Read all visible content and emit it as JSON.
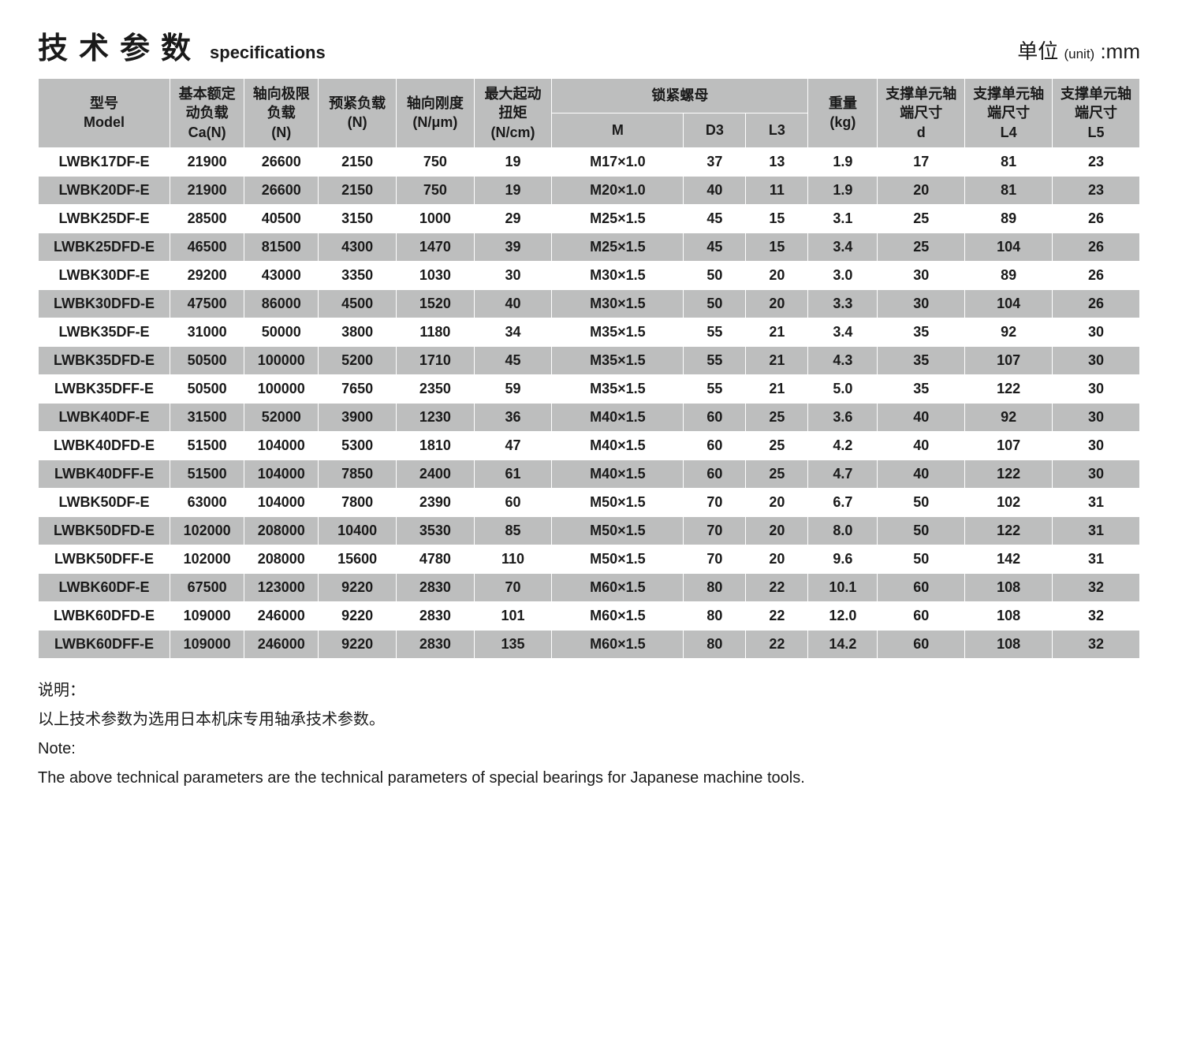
{
  "title_cn": "技术参数",
  "title_en": "specifications",
  "unit_label_cn": "单位",
  "unit_label_paren": "(unit)",
  "unit_colon_mm": ":mm",
  "columns": {
    "model_cn": "型号",
    "model_en": "Model",
    "ca_cn": "基本额定动负载",
    "ca_unit": "Ca(N)",
    "axlim_cn": "轴向极限负载",
    "axlim_unit": "(N)",
    "preload_cn": "预紧负载",
    "preload_unit": "(N)",
    "stiff_cn": "轴向刚度",
    "stiff_unit": "(N/μm)",
    "torque_cn": "最大起动扭矩",
    "torque_unit": "(N/cm)",
    "locknut_cn": "锁紧螺母",
    "m": "M",
    "d3": "D3",
    "l3": "L3",
    "weight_cn": "重量",
    "weight_unit": "(kg)",
    "sup_cn": "支撑单元轴端尺寸",
    "d": "d",
    "l4": "L4",
    "l5": "L5"
  },
  "rows": [
    {
      "model": "LWBK17DF-E",
      "ca": "21900",
      "axlim": "26600",
      "preload": "2150",
      "stiff": "750",
      "torque": "19",
      "m": "M17×1.0",
      "d3": "37",
      "l3": "13",
      "kg": "1.9",
      "d": "17",
      "l4": "81",
      "l5": "23"
    },
    {
      "model": "LWBK20DF-E",
      "ca": "21900",
      "axlim": "26600",
      "preload": "2150",
      "stiff": "750",
      "torque": "19",
      "m": "M20×1.0",
      "d3": "40",
      "l3": "11",
      "kg": "1.9",
      "d": "20",
      "l4": "81",
      "l5": "23"
    },
    {
      "model": "LWBK25DF-E",
      "ca": "28500",
      "axlim": "40500",
      "preload": "3150",
      "stiff": "1000",
      "torque": "29",
      "m": "M25×1.5",
      "d3": "45",
      "l3": "15",
      "kg": "3.1",
      "d": "25",
      "l4": "89",
      "l5": "26"
    },
    {
      "model": "LWBK25DFD-E",
      "ca": "46500",
      "axlim": "81500",
      "preload": "4300",
      "stiff": "1470",
      "torque": "39",
      "m": "M25×1.5",
      "d3": "45",
      "l3": "15",
      "kg": "3.4",
      "d": "25",
      "l4": "104",
      "l5": "26"
    },
    {
      "model": "LWBK30DF-E",
      "ca": "29200",
      "axlim": "43000",
      "preload": "3350",
      "stiff": "1030",
      "torque": "30",
      "m": "M30×1.5",
      "d3": "50",
      "l3": "20",
      "kg": "3.0",
      "d": "30",
      "l4": "89",
      "l5": "26"
    },
    {
      "model": "LWBK30DFD-E",
      "ca": "47500",
      "axlim": "86000",
      "preload": "4500",
      "stiff": "1520",
      "torque": "40",
      "m": "M30×1.5",
      "d3": "50",
      "l3": "20",
      "kg": "3.3",
      "d": "30",
      "l4": "104",
      "l5": "26"
    },
    {
      "model": "LWBK35DF-E",
      "ca": "31000",
      "axlim": "50000",
      "preload": "3800",
      "stiff": "1180",
      "torque": "34",
      "m": "M35×1.5",
      "d3": "55",
      "l3": "21",
      "kg": "3.4",
      "d": "35",
      "l4": "92",
      "l5": "30"
    },
    {
      "model": "LWBK35DFD-E",
      "ca": "50500",
      "axlim": "100000",
      "preload": "5200",
      "stiff": "1710",
      "torque": "45",
      "m": "M35×1.5",
      "d3": "55",
      "l3": "21",
      "kg": "4.3",
      "d": "35",
      "l4": "107",
      "l5": "30"
    },
    {
      "model": "LWBK35DFF-E",
      "ca": "50500",
      "axlim": "100000",
      "preload": "7650",
      "stiff": "2350",
      "torque": "59",
      "m": "M35×1.5",
      "d3": "55",
      "l3": "21",
      "kg": "5.0",
      "d": "35",
      "l4": "122",
      "l5": "30"
    },
    {
      "model": "LWBK40DF-E",
      "ca": "31500",
      "axlim": "52000",
      "preload": "3900",
      "stiff": "1230",
      "torque": "36",
      "m": "M40×1.5",
      "d3": "60",
      "l3": "25",
      "kg": "3.6",
      "d": "40",
      "l4": "92",
      "l5": "30"
    },
    {
      "model": "LWBK40DFD-E",
      "ca": "51500",
      "axlim": "104000",
      "preload": "5300",
      "stiff": "1810",
      "torque": "47",
      "m": "M40×1.5",
      "d3": "60",
      "l3": "25",
      "kg": "4.2",
      "d": "40",
      "l4": "107",
      "l5": "30"
    },
    {
      "model": "LWBK40DFF-E",
      "ca": "51500",
      "axlim": "104000",
      "preload": "7850",
      "stiff": "2400",
      "torque": "61",
      "m": "M40×1.5",
      "d3": "60",
      "l3": "25",
      "kg": "4.7",
      "d": "40",
      "l4": "122",
      "l5": "30"
    },
    {
      "model": "LWBK50DF-E",
      "ca": "63000",
      "axlim": "104000",
      "preload": "7800",
      "stiff": "2390",
      "torque": "60",
      "m": "M50×1.5",
      "d3": "70",
      "l3": "20",
      "kg": "6.7",
      "d": "50",
      "l4": "102",
      "l5": "31"
    },
    {
      "model": "LWBK50DFD-E",
      "ca": "102000",
      "axlim": "208000",
      "preload": "10400",
      "stiff": "3530",
      "torque": "85",
      "m": "M50×1.5",
      "d3": "70",
      "l3": "20",
      "kg": "8.0",
      "d": "50",
      "l4": "122",
      "l5": "31"
    },
    {
      "model": "LWBK50DFF-E",
      "ca": "102000",
      "axlim": "208000",
      "preload": "15600",
      "stiff": "4780",
      "torque": "110",
      "m": "M50×1.5",
      "d3": "70",
      "l3": "20",
      "kg": "9.6",
      "d": "50",
      "l4": "142",
      "l5": "31"
    },
    {
      "model": "LWBK60DF-E",
      "ca": "67500",
      "axlim": "123000",
      "preload": "9220",
      "stiff": "2830",
      "torque": "70",
      "m": "M60×1.5",
      "d3": "80",
      "l3": "22",
      "kg": "10.1",
      "d": "60",
      "l4": "108",
      "l5": "32"
    },
    {
      "model": "LWBK60DFD-E",
      "ca": "109000",
      "axlim": "246000",
      "preload": "9220",
      "stiff": "2830",
      "torque": "101",
      "m": "M60×1.5",
      "d3": "80",
      "l3": "22",
      "kg": "12.0",
      "d": "60",
      "l4": "108",
      "l5": "32"
    },
    {
      "model": "LWBK60DFF-E",
      "ca": "109000",
      "axlim": "246000",
      "preload": "9220",
      "stiff": "2830",
      "torque": "135",
      "m": "M60×1.5",
      "d3": "80",
      "l3": "22",
      "kg": "14.2",
      "d": "60",
      "l4": "108",
      "l5": "32"
    }
  ],
  "notes": {
    "label_cn": "说明：",
    "line_cn": "以上技术参数为选用日本机床专用轴承技术参数。",
    "label_en": "Note:",
    "line_en": "The above technical parameters are the technical parameters of special bearings for Japanese machine tools."
  },
  "style": {
    "header_bg": "#bdbebe",
    "row_even_bg": "#bdbebe",
    "row_odd_bg": "#ffffff",
    "border_color": "#ffffff",
    "text_color": "#1a1a1a",
    "title_cn_fontsize": 38,
    "title_en_fontsize": 22,
    "unit_fontsize": 26,
    "cell_fontsize": 18,
    "notes_fontsize": 20
  }
}
